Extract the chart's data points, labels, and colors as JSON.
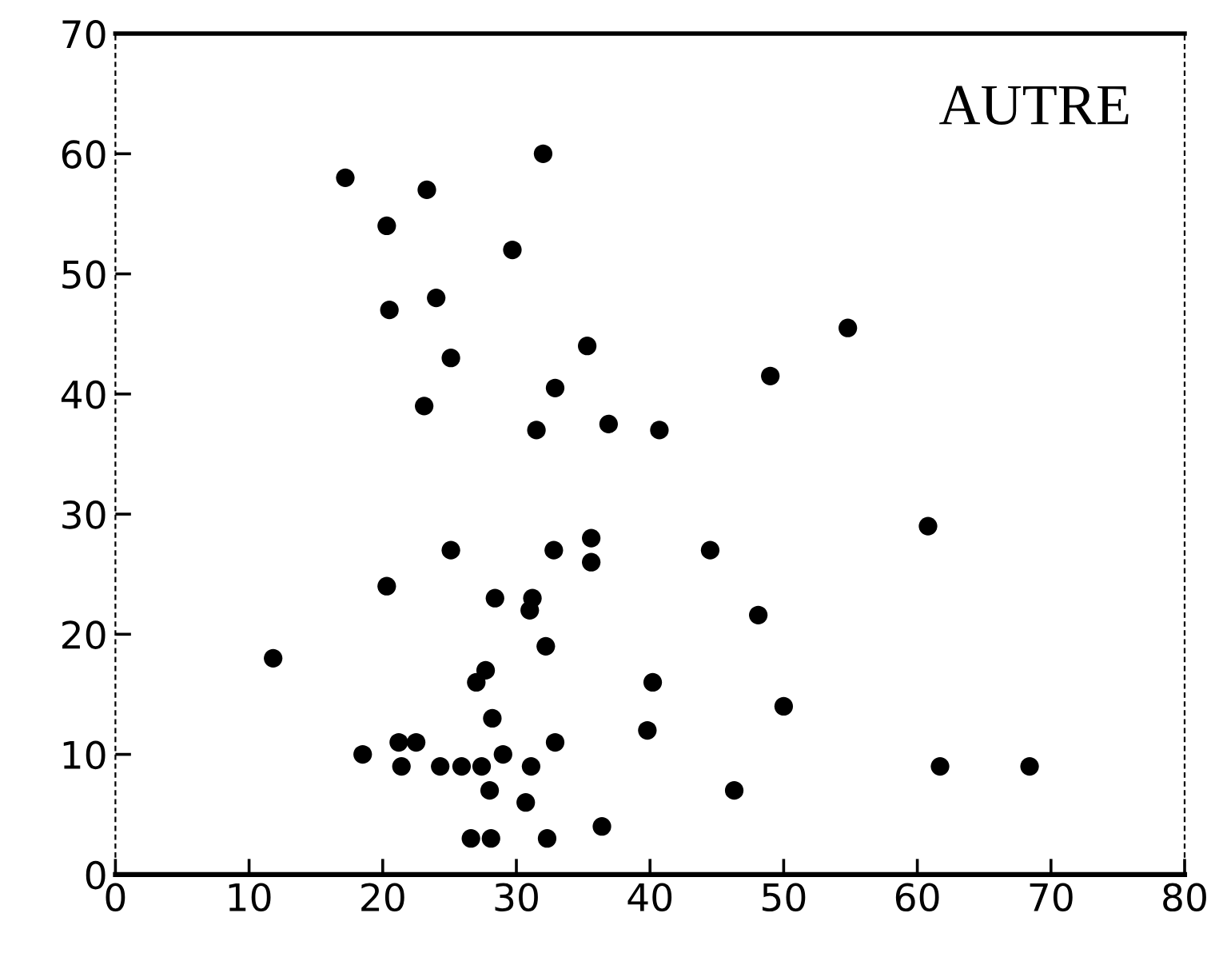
{
  "chart_data": {
    "type": "scatter",
    "annotations": [
      "AUTRE"
    ],
    "x": [
      17.2,
      20.3,
      23.3,
      32.0,
      29.7,
      20.5,
      24.0,
      25.1,
      23.1,
      35.3,
      32.9,
      31.5,
      36.9,
      40.7,
      49.0,
      54.8,
      11.8,
      25.1,
      20.3,
      32.8,
      35.6,
      35.6,
      44.5,
      60.8,
      28.4,
      31.2,
      31.0,
      48.1,
      32.2,
      27.7,
      27.0,
      40.2,
      50.0,
      28.2,
      39.8,
      18.5,
      21.2,
      22.5,
      32.9,
      21.4,
      24.3,
      25.9,
      27.4,
      29.0,
      31.1,
      61.7,
      68.4,
      28.0,
      30.7,
      46.3,
      36.4,
      26.6,
      28.1,
      32.3
    ],
    "values": [
      58,
      54,
      57,
      60,
      52,
      47,
      48,
      43,
      39,
      44,
      40.5,
      37,
      37.5,
      37,
      41.5,
      45.5,
      18,
      27,
      24,
      27,
      28,
      26,
      27,
      29,
      23,
      23,
      22,
      21.6,
      19,
      17,
      16,
      16,
      14,
      13,
      12,
      10,
      11,
      11,
      11,
      9,
      9,
      9,
      9,
      10,
      9,
      9,
      9,
      7,
      6,
      7,
      4,
      3,
      3,
      3
    ],
    "color": "#000000",
    "marker": "circle",
    "grid": false,
    "xlim": [
      0,
      80
    ],
    "xticks": [
      0,
      10,
      20,
      30,
      40,
      50,
      60,
      70,
      80
    ],
    "ylim": [
      0,
      70
    ],
    "yticks": [
      0,
      10,
      20,
      30,
      40,
      50,
      60,
      70
    ]
  }
}
